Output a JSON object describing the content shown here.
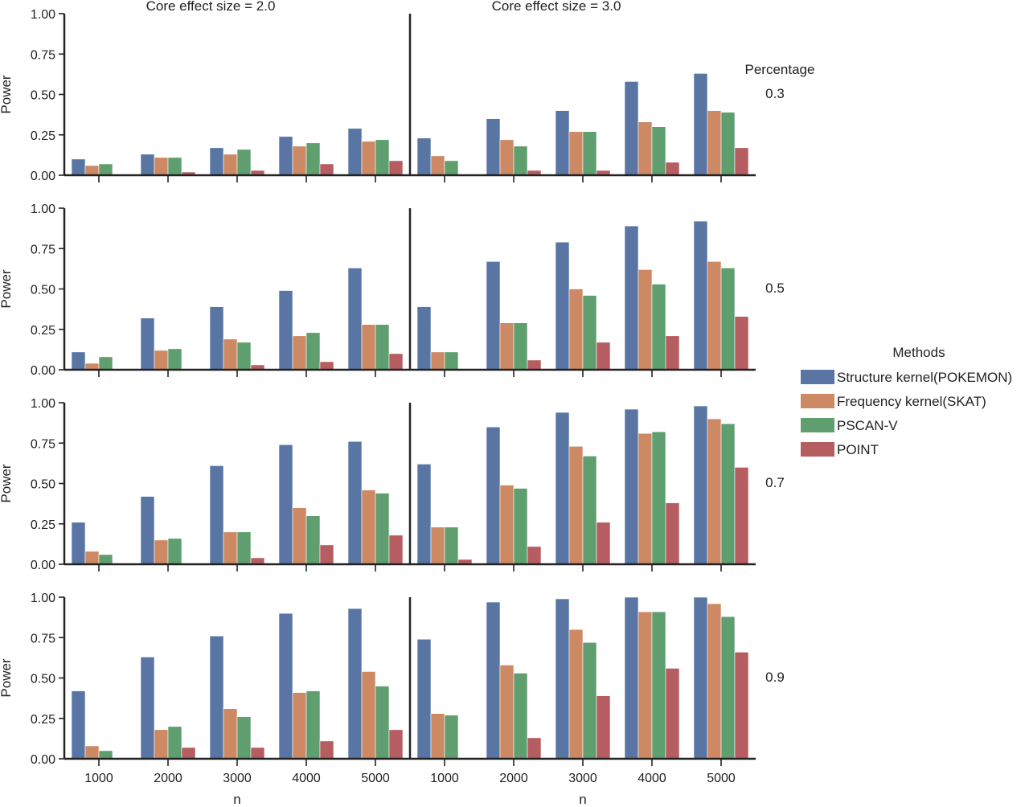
{
  "chart_data": {
    "type": "bar",
    "layout": "facet-grid",
    "x_axis_label": "n",
    "y_axis_label": "Power",
    "categories": [
      "1000",
      "2000",
      "3000",
      "4000",
      "5000"
    ],
    "y_ticks": [
      "0.00",
      "0.25",
      "0.50",
      "0.75",
      "1.00"
    ],
    "ylim": [
      0,
      1
    ],
    "grid": false,
    "legend": {
      "title": "Methods",
      "placement": "right",
      "entries": [
        {
          "name": "Structure kernel(POKEMON)",
          "color": "#5875a4"
        },
        {
          "name": "Frequency kernel(SKAT)",
          "color": "#cc8963"
        },
        {
          "name": "PSCAN-V",
          "color": "#5f9e6e"
        },
        {
          "name": "POINT",
          "color": "#b55d60"
        }
      ]
    },
    "row_facet_title": "Percentage",
    "column_facets": [
      {
        "label": "Core effect size = 2.0"
      },
      {
        "label": "Core effect size = 3.0"
      }
    ],
    "row_facets": [
      {
        "label": "0.3"
      },
      {
        "label": "0.5"
      },
      {
        "label": "0.7"
      },
      {
        "label": "0.9"
      }
    ],
    "panels": [
      {
        "row": 0,
        "col": 0,
        "series": [
          {
            "values": [
              0.1,
              0.13,
              0.17,
              0.24,
              0.29
            ]
          },
          {
            "values": [
              0.06,
              0.11,
              0.13,
              0.18,
              0.21
            ]
          },
          {
            "values": [
              0.07,
              0.11,
              0.16,
              0.2,
              0.22
            ]
          },
          {
            "values": [
              0.0,
              0.02,
              0.03,
              0.07,
              0.09
            ]
          }
        ]
      },
      {
        "row": 0,
        "col": 1,
        "series": [
          {
            "values": [
              0.23,
              0.35,
              0.4,
              0.58,
              0.63
            ]
          },
          {
            "values": [
              0.12,
              0.22,
              0.27,
              0.33,
              0.4
            ]
          },
          {
            "values": [
              0.09,
              0.18,
              0.27,
              0.3,
              0.39
            ]
          },
          {
            "values": [
              0.0,
              0.03,
              0.03,
              0.08,
              0.17
            ]
          }
        ]
      },
      {
        "row": 1,
        "col": 0,
        "series": [
          {
            "values": [
              0.11,
              0.32,
              0.39,
              0.49,
              0.63
            ]
          },
          {
            "values": [
              0.04,
              0.12,
              0.19,
              0.21,
              0.28
            ]
          },
          {
            "values": [
              0.08,
              0.13,
              0.17,
              0.23,
              0.28
            ]
          },
          {
            "values": [
              0.0,
              0.0,
              0.03,
              0.05,
              0.1
            ]
          }
        ]
      },
      {
        "row": 1,
        "col": 1,
        "series": [
          {
            "values": [
              0.39,
              0.67,
              0.79,
              0.89,
              0.92
            ]
          },
          {
            "values": [
              0.11,
              0.29,
              0.5,
              0.62,
              0.67
            ]
          },
          {
            "values": [
              0.11,
              0.29,
              0.46,
              0.53,
              0.63
            ]
          },
          {
            "values": [
              0.0,
              0.06,
              0.17,
              0.21,
              0.33
            ]
          }
        ]
      },
      {
        "row": 2,
        "col": 0,
        "series": [
          {
            "values": [
              0.26,
              0.42,
              0.61,
              0.74,
              0.76
            ]
          },
          {
            "values": [
              0.08,
              0.15,
              0.2,
              0.35,
              0.46
            ]
          },
          {
            "values": [
              0.06,
              0.16,
              0.2,
              0.3,
              0.44
            ]
          },
          {
            "values": [
              0.0,
              0.0,
              0.04,
              0.12,
              0.18
            ]
          }
        ]
      },
      {
        "row": 2,
        "col": 1,
        "series": [
          {
            "values": [
              0.62,
              0.85,
              0.94,
              0.96,
              0.98
            ]
          },
          {
            "values": [
              0.23,
              0.49,
              0.73,
              0.81,
              0.9
            ]
          },
          {
            "values": [
              0.23,
              0.47,
              0.67,
              0.82,
              0.87
            ]
          },
          {
            "values": [
              0.03,
              0.11,
              0.26,
              0.38,
              0.6
            ]
          }
        ]
      },
      {
        "row": 3,
        "col": 0,
        "series": [
          {
            "values": [
              0.42,
              0.63,
              0.76,
              0.9,
              0.93
            ]
          },
          {
            "values": [
              0.08,
              0.18,
              0.31,
              0.41,
              0.54
            ]
          },
          {
            "values": [
              0.05,
              0.2,
              0.26,
              0.42,
              0.45
            ]
          },
          {
            "values": [
              0.0,
              0.07,
              0.07,
              0.11,
              0.18
            ]
          }
        ]
      },
      {
        "row": 3,
        "col": 1,
        "series": [
          {
            "values": [
              0.74,
              0.97,
              0.99,
              1.0,
              1.0
            ]
          },
          {
            "values": [
              0.28,
              0.58,
              0.8,
              0.91,
              0.96
            ]
          },
          {
            "values": [
              0.27,
              0.53,
              0.72,
              0.91,
              0.88
            ]
          },
          {
            "values": [
              0.0,
              0.13,
              0.39,
              0.56,
              0.66
            ]
          }
        ]
      }
    ]
  }
}
